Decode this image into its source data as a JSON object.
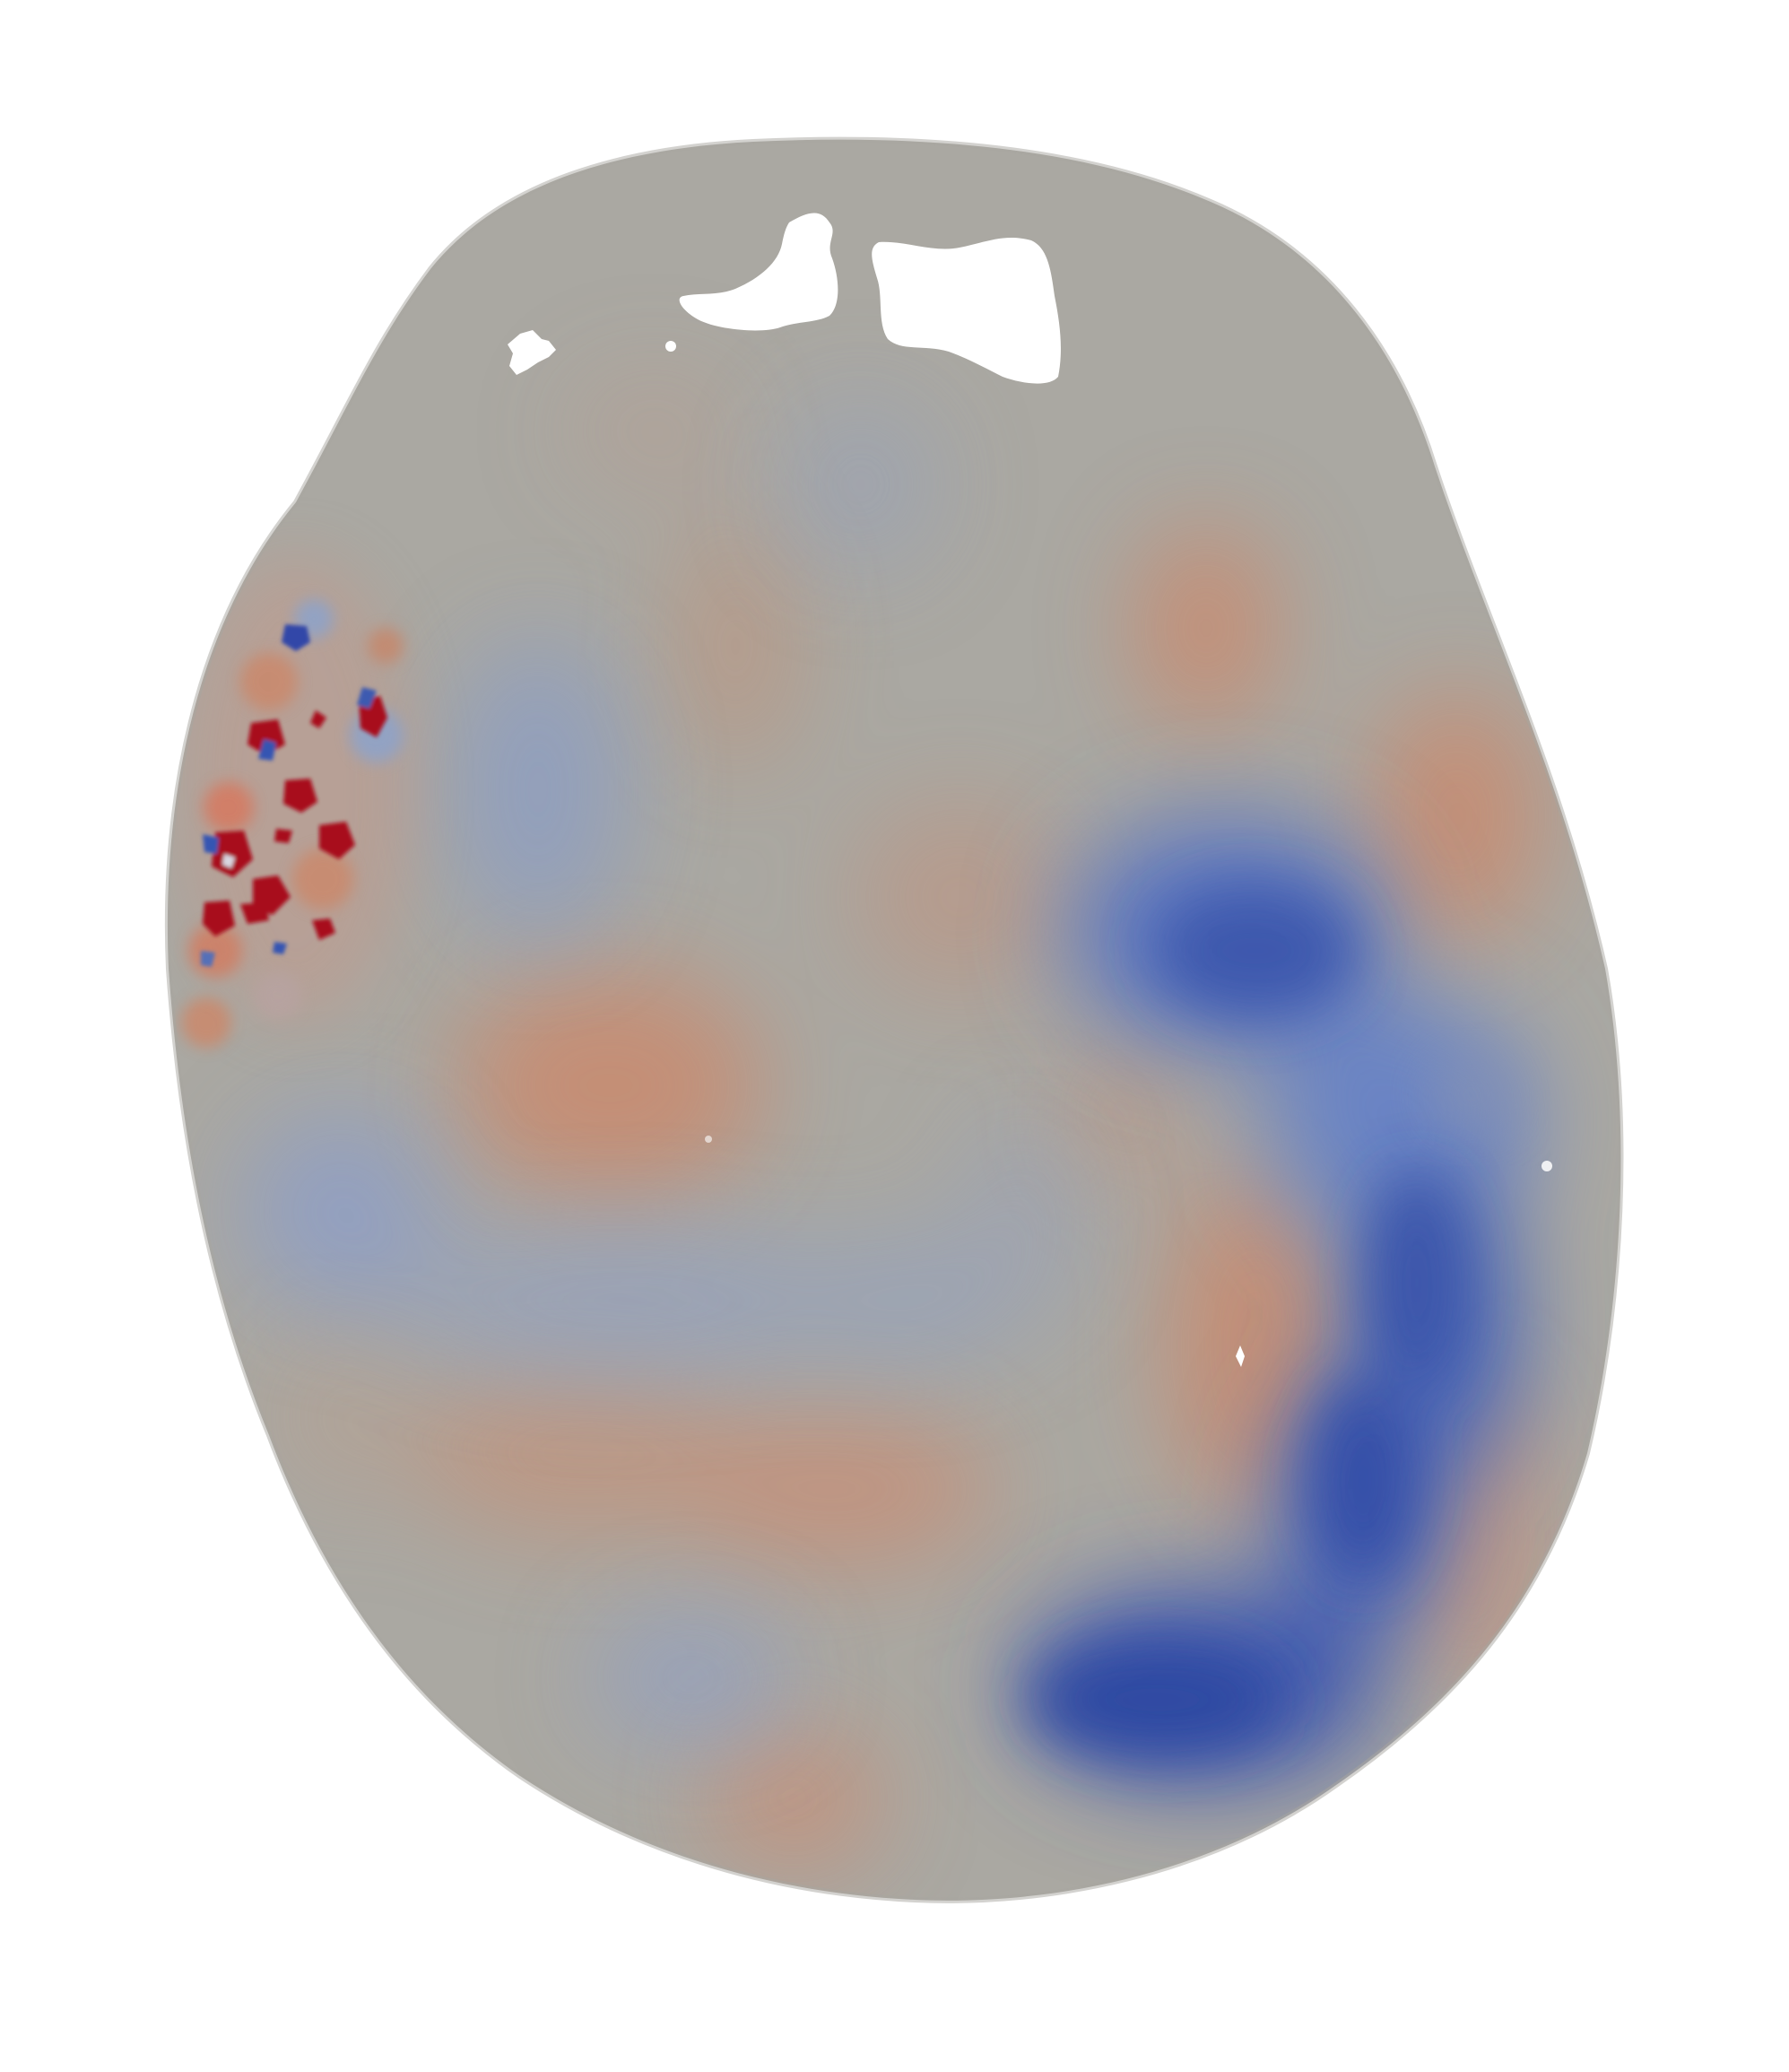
{
  "scene": {
    "subject": "brain-slice-field-map",
    "colormap": {
      "neutral": "#aaa8a2",
      "warm": "#c98a6e",
      "cool": "#7f98c7",
      "deep_cool": "#2f48a2",
      "deep_warm": "#a80f1e",
      "background": "#ffffff"
    }
  }
}
